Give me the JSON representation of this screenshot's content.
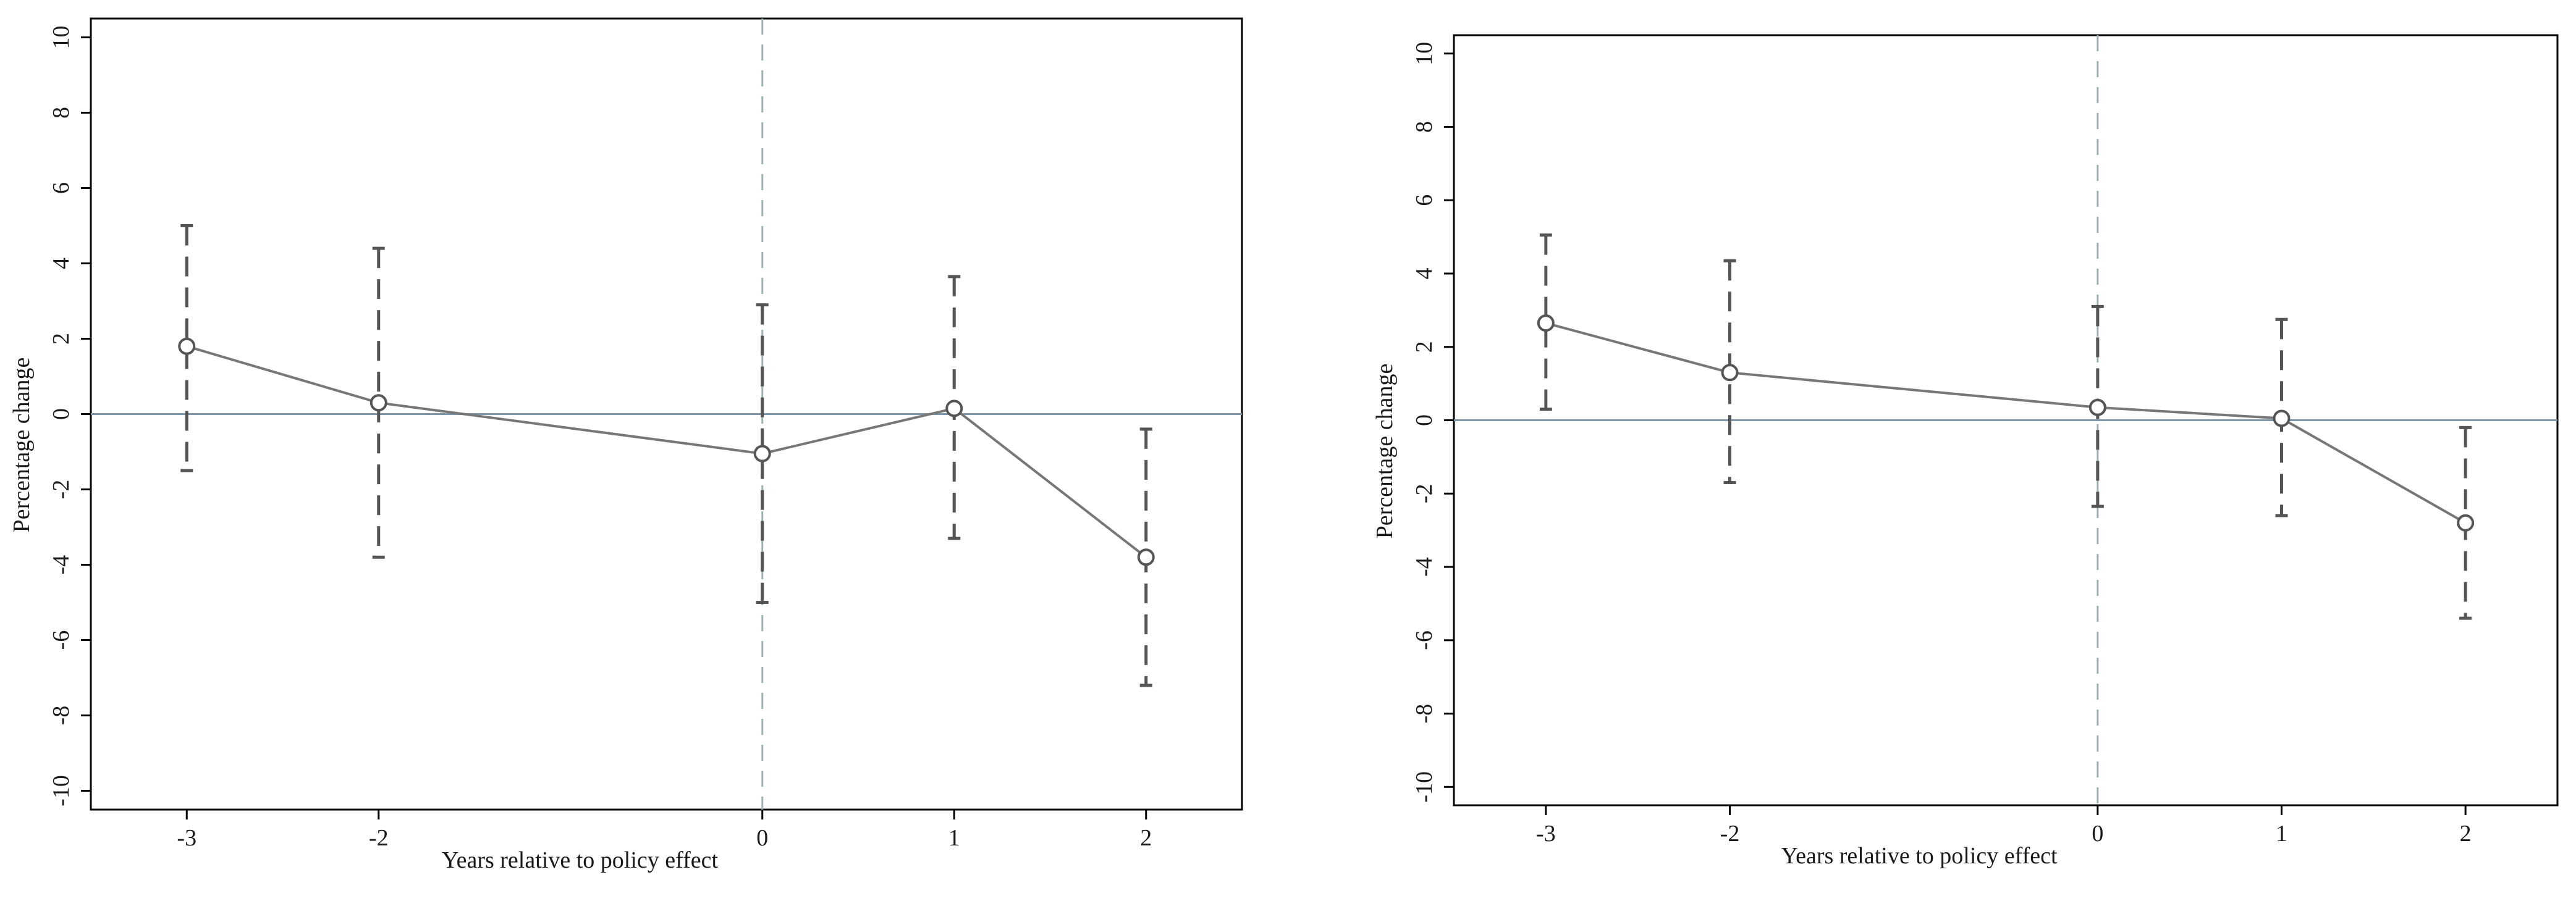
{
  "chart_data": [
    {
      "type": "line",
      "xlabel": "Years relative to policy effect",
      "ylabel": "Percentage change",
      "xticks": [
        -3,
        -2,
        0,
        1,
        2
      ],
      "xlim": [
        -3.5,
        2.5
      ],
      "ylim": [
        -10.5,
        10.5
      ],
      "yticks": [
        -10,
        -8,
        -6,
        -4,
        -2,
        0,
        2,
        4,
        6,
        8,
        10
      ],
      "reference_lines": {
        "horizontal_y": 0,
        "vertical_x": 0
      },
      "series": [
        {
          "x": [
            -3,
            -2,
            0,
            1,
            2
          ],
          "y": [
            1.8,
            0.3,
            -1.05,
            0.15,
            -3.8
          ],
          "ci_low": [
            -1.5,
            -3.8,
            -5.0,
            -3.3,
            -7.2
          ],
          "ci_high": [
            5.0,
            4.4,
            2.9,
            3.65,
            -0.4
          ]
        }
      ],
      "colors": {
        "line": "#777777",
        "ci": "#555555",
        "hline": "#7f96a8",
        "vline": "#9fb2b2"
      }
    },
    {
      "type": "line",
      "xlabel": "Years relative to policy effect",
      "ylabel": "Percentage change",
      "xticks": [
        -3,
        -2,
        0,
        1,
        2
      ],
      "xlim": [
        -3.5,
        2.5
      ],
      "ylim": [
        -10.5,
        10.5
      ],
      "yticks": [
        -10,
        -8,
        -6,
        -4,
        -2,
        0,
        2,
        4,
        6,
        8,
        10
      ],
      "reference_lines": {
        "horizontal_y": 0,
        "vertical_x": 0
      },
      "series": [
        {
          "x": [
            -3,
            -2,
            0,
            1,
            2
          ],
          "y": [
            2.65,
            1.3,
            0.35,
            0.05,
            -2.8
          ],
          "ci_low": [
            0.3,
            -1.7,
            -2.35,
            -2.6,
            -5.4
          ],
          "ci_high": [
            5.05,
            4.35,
            3.1,
            2.75,
            -0.2
          ]
        }
      ],
      "colors": {
        "line": "#777777",
        "ci": "#555555",
        "hline": "#7f96a8",
        "vline": "#9fb2b2"
      }
    }
  ]
}
